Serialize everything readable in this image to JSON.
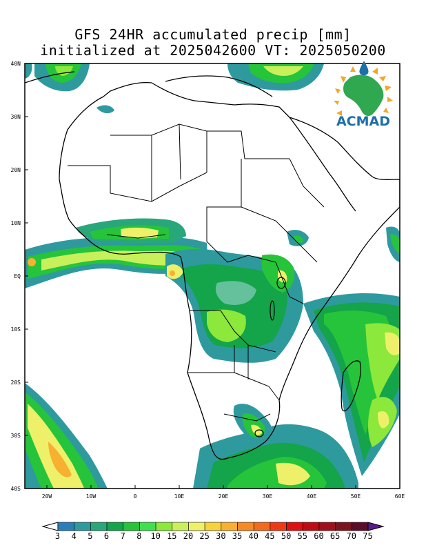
{
  "title": {
    "line1": "GFS 24HR accumulated precip [mm]",
    "line2": "initialized at 2025042600 VT: 2025050200"
  },
  "logo": {
    "text": "ACMAD"
  },
  "axes": {
    "lat_labels": [
      "40N",
      "30N",
      "20N",
      "10N",
      "EQ",
      "10S",
      "20S",
      "30S",
      "40S"
    ],
    "lon_labels": [
      "20W",
      "10W",
      "0",
      "10E",
      "20E",
      "30E",
      "40E",
      "50E",
      "60E"
    ],
    "lat_range": [
      -40,
      40
    ],
    "lon_range": [
      -25,
      60
    ]
  },
  "colorbar": {
    "labels": [
      "3",
      "4",
      "5",
      "6",
      "7",
      "8",
      "10",
      "15",
      "20",
      "25",
      "30",
      "35",
      "40",
      "45",
      "50",
      "55",
      "60",
      "65",
      "70",
      "75"
    ],
    "colors": [
      "#2b7fb8",
      "#2e9a9e",
      "#27a77a",
      "#14a44a",
      "#26c43a",
      "#3ee050",
      "#8ce83a",
      "#c8f05a",
      "#eef06a",
      "#f7d23a",
      "#f7b030",
      "#f58a23",
      "#f26a1c",
      "#ee3a14",
      "#e01010",
      "#c00a14",
      "#a0101c",
      "#7c1420",
      "#5a0c2a",
      "#5a1a8a"
    ]
  },
  "precip_levels": {
    "light_teal": "#2e9a9e",
    "dark_green": "#14a44a",
    "bright_green": "#26c43a",
    "light_green": "#8ce83a",
    "yellow": "#eef06a",
    "orange": "#f7b030"
  }
}
